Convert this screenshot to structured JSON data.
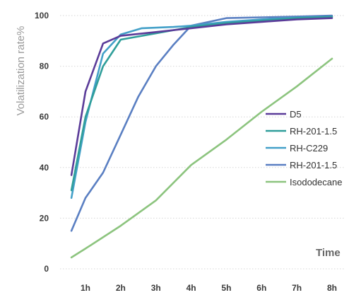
{
  "chart_data": {
    "type": "line",
    "xlabel": "Time",
    "ylabel": "Volatilization rate%",
    "x_ticks": [
      "1h",
      "2h",
      "3h",
      "4h",
      "5h",
      "6h",
      "7h",
      "8h"
    ],
    "y_ticks": [
      "0",
      "20",
      "40",
      "60",
      "80",
      "100"
    ],
    "ylim": [
      0,
      100
    ],
    "xlim": [
      0.5,
      8
    ],
    "grid": "horizontal",
    "legend_position": "right",
    "series": [
      {
        "name": "D5",
        "color": "#5b3c99",
        "points": [
          [
            0.6,
            37
          ],
          [
            1.0,
            70
          ],
          [
            1.5,
            89
          ],
          [
            2.0,
            92
          ],
          [
            3.0,
            93.5
          ],
          [
            4.0,
            95
          ],
          [
            5.0,
            96.5
          ],
          [
            6.0,
            97.5
          ],
          [
            7.0,
            98.5
          ],
          [
            8.0,
            99
          ]
        ]
      },
      {
        "name": "RH-201-1.5",
        "color": "#2f9e9a",
        "points": [
          [
            0.6,
            31
          ],
          [
            1.0,
            60
          ],
          [
            1.5,
            80
          ],
          [
            2.0,
            90.5
          ],
          [
            3.0,
            93
          ],
          [
            4.0,
            95.5
          ],
          [
            5.0,
            97
          ],
          [
            6.0,
            98
          ],
          [
            7.0,
            99
          ],
          [
            8.0,
            99.5
          ]
        ]
      },
      {
        "name": "RH-C229",
        "color": "#43a0c8",
        "points": [
          [
            0.6,
            28
          ],
          [
            1.0,
            58
          ],
          [
            1.5,
            85
          ],
          [
            2.0,
            92.5
          ],
          [
            2.6,
            95
          ],
          [
            3.5,
            95.5
          ],
          [
            4.0,
            96
          ],
          [
            5.0,
            97.5
          ],
          [
            6.0,
            98.5
          ],
          [
            7.0,
            99.2
          ],
          [
            8.0,
            99.6
          ]
        ]
      },
      {
        "name": "RH-201-1.5",
        "color": "#5a7fc2",
        "points": [
          [
            0.6,
            15
          ],
          [
            1.0,
            28
          ],
          [
            1.5,
            38
          ],
          [
            2.0,
            53
          ],
          [
            2.5,
            68
          ],
          [
            3.0,
            80
          ],
          [
            3.5,
            88.5
          ],
          [
            4.0,
            96
          ],
          [
            5.0,
            99
          ],
          [
            6.0,
            99.3
          ],
          [
            7.0,
            99.6
          ],
          [
            8.0,
            100
          ]
        ]
      },
      {
        "name": "Isododecane",
        "color": "#8cc47e",
        "points": [
          [
            0.6,
            4.5
          ],
          [
            1.0,
            8
          ],
          [
            2.0,
            17
          ],
          [
            3.0,
            27
          ],
          [
            3.5,
            34
          ],
          [
            4.0,
            41
          ],
          [
            5.0,
            51
          ],
          [
            6.0,
            62
          ],
          [
            7.0,
            72
          ],
          [
            8.0,
            83
          ]
        ]
      }
    ]
  }
}
